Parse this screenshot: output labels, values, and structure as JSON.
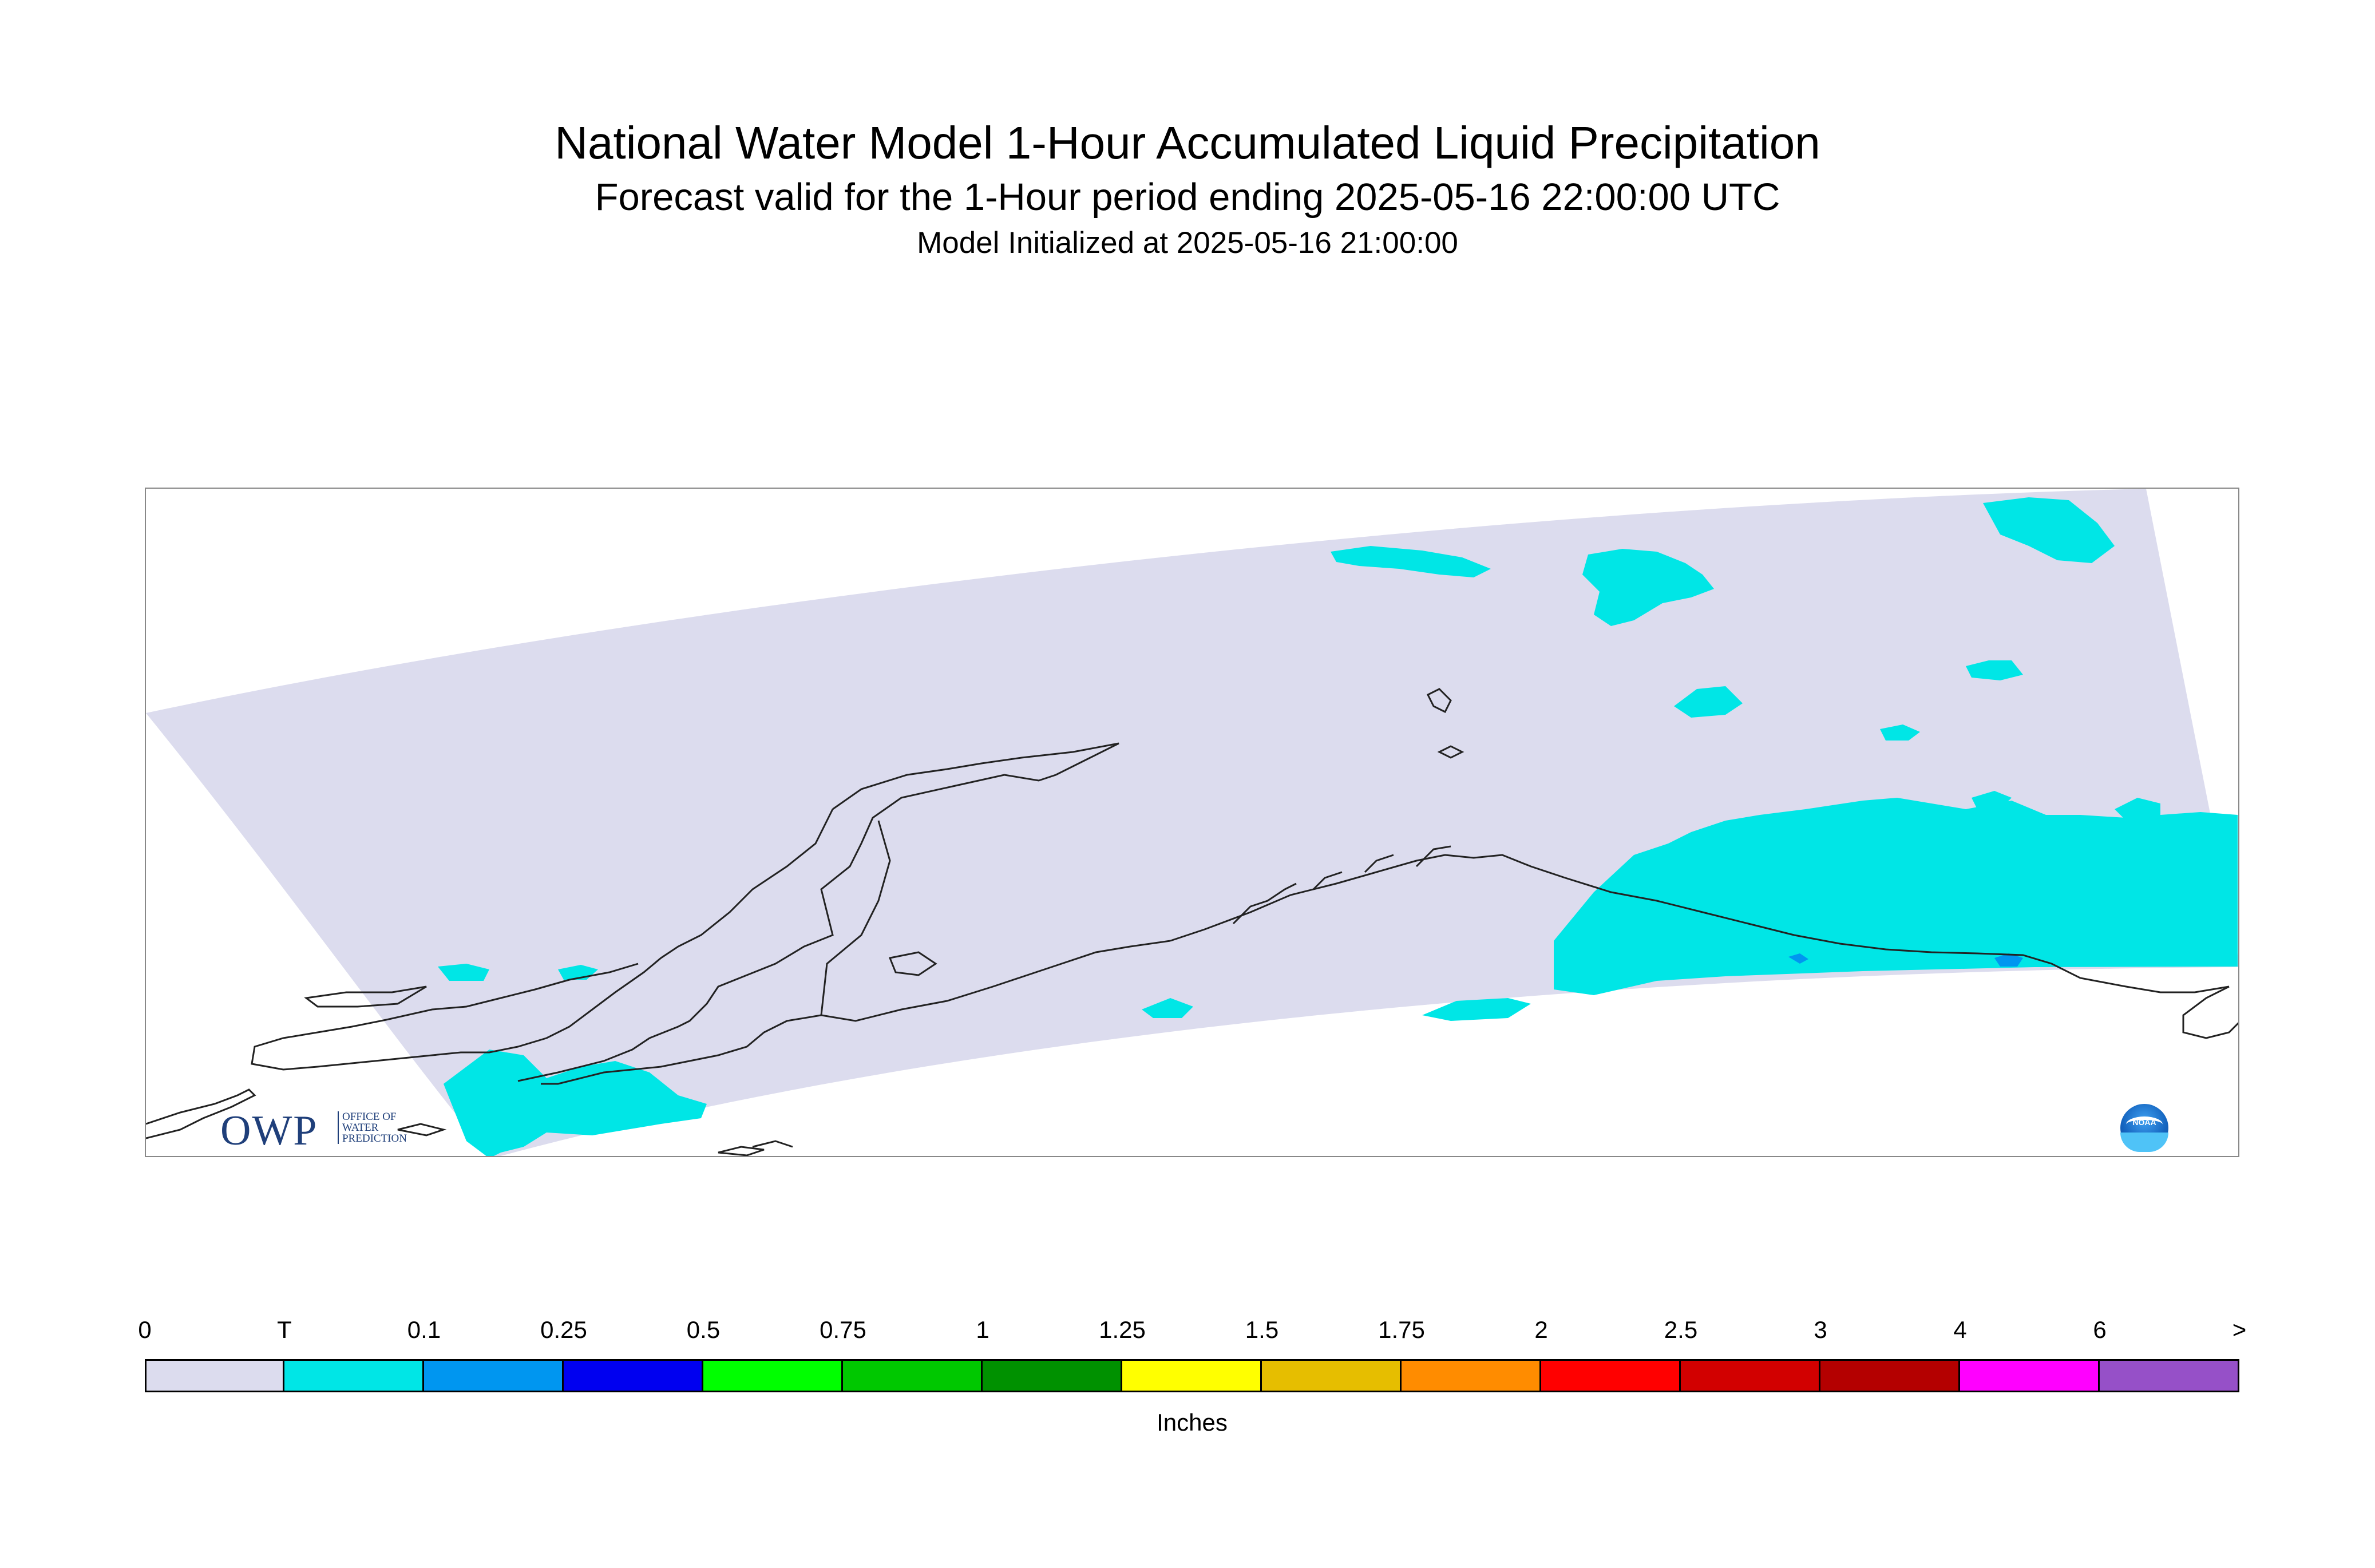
{
  "header": {
    "title": "National Water Model 1-Hour Accumulated Liquid Precipitation",
    "subtitle": "Forecast valid for the 1-Hour period ending 2025-05-16 22:00:00 UTC",
    "init": "Model Initialized at 2025-05-16 21:00:00"
  },
  "logos": {
    "owp_main": "OWP",
    "owp_sub": "OFFICE OF WATER PREDICTION",
    "noaa": "NOAA"
  },
  "legend": {
    "units": "Inches",
    "tick_labels": [
      "0",
      "T",
      "0.1",
      "0.25",
      "0.5",
      "0.75",
      "1",
      "1.25",
      "1.5",
      "1.75",
      "2",
      "2.5",
      "3",
      "4",
      "6",
      ">"
    ],
    "colors": [
      "#dcdcee",
      "#00e6e6",
      "#0096f0",
      "#0000f0",
      "#00ff00",
      "#00c800",
      "#009100",
      "#ffff00",
      "#e6be00",
      "#ff8c00",
      "#ff0000",
      "#d20000",
      "#b40000",
      "#ff00ff",
      "#9650c8"
    ]
  },
  "map": {
    "domain_color": "#dcdcee",
    "trace_color": "#00e6e6",
    "light_color": "#0096f0",
    "coast_color": "#222222"
  }
}
